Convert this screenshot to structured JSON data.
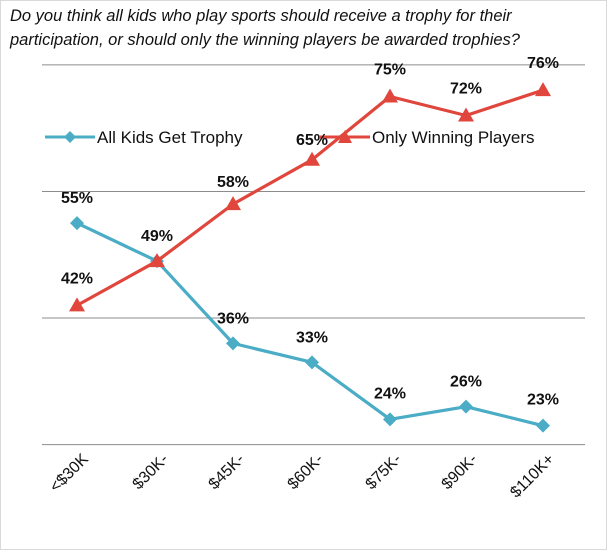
{
  "question": "Do you think all kids who play sports should receive a trophy for their participation, or should only the winning players be awarded trophies?",
  "colors": {
    "all_kids": "#4bacc6",
    "winning": "#e0463c",
    "grid": "#8c8c8c"
  },
  "chart_data": {
    "type": "line",
    "categories": [
      "<$30K",
      "$30K-",
      "$45K-",
      "$60K-",
      "$75K-",
      "$90K-",
      "$110K+"
    ],
    "series": [
      {
        "name": "All Kids Get Trophy",
        "values": [
          55,
          49,
          36,
          33,
          24,
          26,
          23
        ],
        "labels": [
          "55%",
          "49%",
          "36%",
          "33%",
          "24%",
          "26%",
          "23%"
        ],
        "marker": "diamond"
      },
      {
        "name": "Only Winning Players",
        "values": [
          42,
          49,
          58,
          65,
          75,
          72,
          76
        ],
        "labels": [
          "42%",
          "",
          "58%",
          "65%",
          "75%",
          "72%",
          "76%"
        ],
        "marker": "triangle"
      }
    ],
    "ylim": [
      20,
      80
    ],
    "grid": true,
    "legend": "top"
  }
}
